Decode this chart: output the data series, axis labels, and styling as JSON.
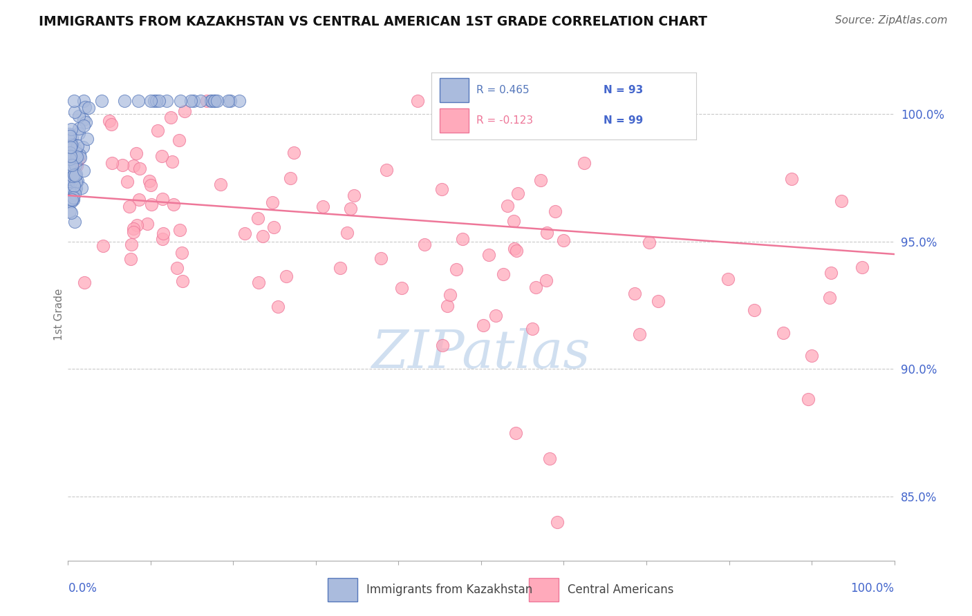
{
  "title": "IMMIGRANTS FROM KAZAKHSTAN VS CENTRAL AMERICAN 1ST GRADE CORRELATION CHART",
  "source": "Source: ZipAtlas.com",
  "ylabel": "1st Grade",
  "legend_label1": "Immigrants from Kazakhstan",
  "legend_label2": "Central Americans",
  "r_kaz": 0.465,
  "n_kaz": 93,
  "r_ca": -0.123,
  "n_ca": 99,
  "y_ticks": [
    0.85,
    0.9,
    0.95,
    1.0
  ],
  "y_tick_labels": [
    "85.0%",
    "90.0%",
    "95.0%",
    "100.0%"
  ],
  "x_lim": [
    0.0,
    1.0
  ],
  "y_lim": [
    0.825,
    1.018
  ],
  "color_kaz_face": "#AABBDD",
  "color_kaz_edge": "#5577BB",
  "color_ca_face": "#FFAABB",
  "color_ca_edge": "#EE7799",
  "color_ca_line": "#EE7799",
  "title_color": "#111111",
  "source_color": "#666666",
  "axis_label_color": "#777777",
  "tick_color": "#4466CC",
  "watermark_color": "#D0DFF0",
  "grid_color": "#BBBBBB"
}
